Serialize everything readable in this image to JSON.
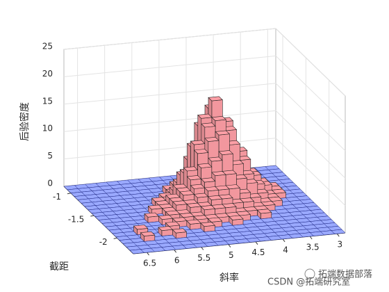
{
  "chart_data": {
    "type": "bar3",
    "xlabel": "斜率",
    "ylabel": "截距",
    "zlabel": "后验密度",
    "xlim": [
      2.85,
      6.75
    ],
    "xreverse": true,
    "xticks": [
      6.5,
      6,
      5.5,
      5,
      4.5,
      4,
      3.5,
      3
    ],
    "ylim": [
      -2.35,
      -0.85
    ],
    "yreverse": true,
    "yticks": [
      -1,
      -1.5,
      -2
    ],
    "zlim": [
      0,
      25
    ],
    "zticks": [
      0,
      5,
      10,
      15,
      20,
      25
    ],
    "grid": true,
    "bar_color": "#ff9fa6",
    "floor_color": "#9aa9ff",
    "z": [
      [
        0,
        0,
        0,
        0,
        0,
        0,
        0,
        0,
        0,
        0,
        0,
        0,
        0,
        0,
        0,
        0,
        0,
        0,
        0,
        0
      ],
      [
        0,
        0,
        0,
        0,
        0,
        0,
        0,
        0,
        0,
        0,
        0,
        1,
        2,
        1,
        0,
        0,
        0,
        0,
        0,
        0
      ],
      [
        0,
        0,
        0,
        0,
        0,
        0,
        0,
        0,
        0,
        0,
        1,
        3,
        5,
        3,
        1,
        0,
        0,
        0,
        0,
        0
      ],
      [
        0,
        0,
        0,
        0,
        0,
        0,
        0,
        0,
        0,
        1,
        3,
        8,
        10,
        6,
        3,
        1,
        0,
        0,
        0,
        0
      ],
      [
        0,
        0,
        0,
        0,
        0,
        0,
        0,
        0,
        1,
        2,
        6,
        12,
        15,
        10,
        5,
        2,
        1,
        0,
        0,
        0
      ],
      [
        0,
        0,
        0,
        0,
        0,
        0,
        0,
        0,
        1,
        4,
        9,
        14,
        17,
        13,
        7,
        3,
        1,
        0,
        0,
        0
      ],
      [
        0,
        0,
        0,
        0,
        0,
        0,
        0,
        1,
        2,
        5,
        10,
        13,
        14,
        12,
        8,
        4,
        2,
        1,
        0,
        0
      ],
      [
        0,
        0,
        0,
        0,
        0,
        0,
        1,
        1,
        3,
        6,
        9,
        11,
        12,
        10,
        7,
        4,
        2,
        1,
        0,
        0
      ],
      [
        0,
        0,
        0,
        0,
        0,
        0,
        1,
        2,
        3,
        5,
        7,
        8,
        9,
        7,
        5,
        3,
        1,
        1,
        0,
        0
      ],
      [
        0,
        0,
        0,
        0,
        0,
        1,
        1,
        2,
        3,
        4,
        5,
        6,
        6,
        5,
        4,
        2,
        1,
        0,
        0,
        0
      ],
      [
        0,
        0,
        0,
        0,
        0,
        0,
        1,
        2,
        2,
        3,
        4,
        4,
        4,
        3,
        2,
        1,
        1,
        0,
        0,
        0
      ],
      [
        0,
        0,
        0,
        0,
        1,
        0,
        1,
        1,
        2,
        2,
        3,
        3,
        2,
        2,
        1,
        1,
        0,
        0,
        0,
        0
      ],
      [
        0,
        0,
        0,
        0,
        0,
        1,
        0,
        1,
        1,
        2,
        2,
        2,
        1,
        1,
        1,
        0,
        0,
        0,
        0,
        0
      ],
      [
        0,
        0,
        0,
        0,
        0,
        0,
        1,
        0,
        1,
        1,
        1,
        1,
        1,
        0,
        1,
        0,
        0,
        0,
        0,
        0
      ],
      [
        0,
        0,
        1,
        0,
        0,
        1,
        0,
        1,
        0,
        1,
        0,
        1,
        0,
        0,
        0,
        0,
        0,
        0,
        0,
        0
      ],
      [
        0,
        0,
        0,
        0,
        1,
        0,
        0,
        0,
        1,
        0,
        0,
        0,
        0,
        0,
        0,
        0,
        0,
        0,
        0,
        0
      ],
      [
        0,
        0,
        1,
        0,
        0,
        1,
        0,
        0,
        0,
        0,
        0,
        0,
        0,
        0,
        0,
        0,
        0,
        0,
        0,
        0
      ],
      [
        0,
        0,
        0,
        0,
        0,
        0,
        0,
        0,
        0,
        0,
        0,
        0,
        0,
        0,
        0,
        0,
        0,
        0,
        0,
        0
      ],
      [
        0,
        0,
        0,
        0,
        0,
        0,
        0,
        0,
        0,
        0,
        0,
        0,
        0,
        0,
        0,
        0,
        0,
        0,
        0,
        0
      ],
      [
        0,
        0,
        0,
        0,
        0,
        0,
        0,
        0,
        0,
        0,
        0,
        0,
        0,
        0,
        0,
        0,
        0,
        0,
        0,
        0
      ]
    ]
  },
  "watermark": {
    "brand": "拓端数据部落",
    "credit": "CSDN @拓端研究室"
  }
}
